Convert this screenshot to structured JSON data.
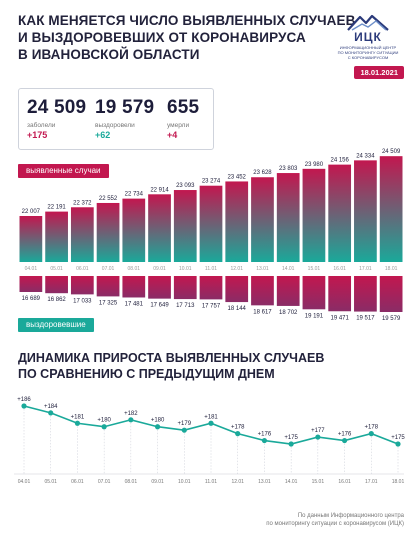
{
  "header": {
    "title_lines": [
      "КАК МЕНЯЕТСЯ ЧИСЛО ВЫЯВЛЕННЫХ СЛУЧАЕВ",
      "И ВЫЗДОРОВЕВШИХ ОТ КОРОНАВИРУСА",
      "В ИВАНОВСКОЙ ОБЛАСТИ"
    ],
    "logo_name": "ИЦК",
    "logo_sub_lines": [
      "ИНФОРМАЦИОННЫЙ ЦЕНТР",
      "ПО МОНИТОРИНГУ СИТУАЦИИ",
      "С КОРОНАВИРУСОМ"
    ],
    "date": "18.01.2021"
  },
  "stats": [
    {
      "value": "24 509",
      "label": "заболели",
      "delta": "+175",
      "tone": "red"
    },
    {
      "value": "19 579",
      "label": "выздоровели",
      "delta": "+62",
      "tone": "green"
    },
    {
      "value": "655",
      "label": "умерли",
      "delta": "+4",
      "tone": "red"
    }
  ],
  "labels": {
    "cases": "выявленные случаи",
    "recovered": "выздоровевшие"
  },
  "section2": {
    "title_lines": [
      "ДИНАМИКА ПРИРОСТА ВЫЯВЛЕННЫХ СЛУЧАЕВ",
      "ПО СРАВНЕНИЮ С ПРЕДЫДУЩИМ ДНЕМ"
    ]
  },
  "source_lines": [
    "По данным Информационного центра",
    "по мониторингу ситуации с коронавирусом (ИЦК)"
  ],
  "colors": {
    "accent_red": "#c2174f",
    "accent_green": "#1aa99a",
    "line": "#1aa99a"
  },
  "chart_data": [
    {
      "type": "bar",
      "categories": [
        "04.01",
        "05.01",
        "06.01",
        "07.01",
        "08.01",
        "09.01",
        "10.01",
        "11.01",
        "12.01",
        "13.01",
        "14.01",
        "15.01",
        "16.01",
        "17.01",
        "18.01"
      ],
      "series": [
        {
          "name": "выявленные случаи",
          "values": [
            22007,
            22191,
            22372,
            22552,
            22734,
            22914,
            23093,
            23274,
            23452,
            23628,
            23803,
            23980,
            24156,
            24334,
            24509
          ],
          "labels": [
            "22 007",
            "22 191",
            "22 372",
            "22 552",
            "22 734",
            "22 914",
            "23 093",
            "23 274",
            "23 452",
            "23 628",
            "23 803",
            "23 980",
            "24 156",
            "24 334",
            "24 509"
          ]
        },
        {
          "name": "выздоровевшие",
          "values": [
            16689,
            16862,
            17033,
            17325,
            17481,
            17649,
            17713,
            17757,
            18144,
            18617,
            18702,
            19191,
            19471,
            19517,
            19579
          ],
          "labels": [
            "16 689",
            "16 862",
            "17 033",
            "17 325",
            "17 481",
            "17 649",
            "17 713",
            "17 757",
            "18 144",
            "18 617",
            "18 702",
            "19 191",
            "19 471",
            "19 517",
            "19 579"
          ]
        }
      ]
    },
    {
      "type": "line",
      "categories": [
        "04.01",
        "05.01",
        "06.01",
        "07.01",
        "08.01",
        "09.01",
        "10.01",
        "11.01",
        "12.01",
        "13.01",
        "14.01",
        "15.01",
        "16.01",
        "17.01",
        "18.01"
      ],
      "values": [
        186,
        184,
        181,
        180,
        182,
        180,
        179,
        181,
        178,
        176,
        175,
        177,
        176,
        178,
        175
      ],
      "labels": [
        "+186",
        "+184",
        "+181",
        "+180",
        "+182",
        "+180",
        "+179",
        "+181",
        "+178",
        "+176",
        "+175",
        "+177",
        "+176",
        "+178",
        "+175"
      ]
    }
  ]
}
